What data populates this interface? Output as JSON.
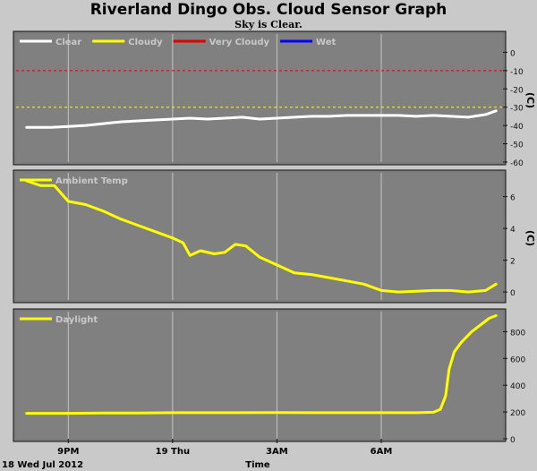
{
  "title": "Riverland Dingo Obs. Cloud Sensor Graph",
  "subtitle": "Sky is Clear.",
  "footer": {
    "date": "18 Wed Jul 2012",
    "xlabel": "Time"
  },
  "x_ticks": [
    "9PM",
    "19 Thu",
    "3AM",
    "6AM"
  ],
  "colors": {
    "background": "#c9c9c9",
    "plot_bg": "#808080",
    "grid": "#c4c4c4",
    "clear": "#ffffff",
    "cloudy": "#ffff00",
    "very_cloudy": "#e00000",
    "wet": "#0000ff"
  },
  "chart_data": [
    {
      "type": "line",
      "ylabel": "(C)",
      "ylim": [
        -60,
        10
      ],
      "yticks": [
        0,
        -10,
        -20,
        -30,
        -40,
        -50,
        -60
      ],
      "legend": [
        {
          "label": "Clear",
          "color": "#ffffff"
        },
        {
          "label": "Cloudy",
          "color": "#ffff00"
        },
        {
          "label": "Very Cloudy",
          "color": "#e00000"
        },
        {
          "label": "Wet",
          "color": "#0000ff"
        }
      ],
      "thresholds": [
        {
          "y": -10,
          "color": "#e00000",
          "style": "dashed"
        },
        {
          "y": -30,
          "color": "#ffff00",
          "style": "dashed"
        }
      ],
      "series": [
        {
          "name": "Clear",
          "color": "#ffffff",
          "x": [
            19.8,
            20.5,
            21.0,
            21.5,
            22.0,
            22.5,
            23.0,
            23.5,
            24.0,
            24.5,
            25.0,
            25.5,
            26.0,
            26.5,
            27.0,
            27.5,
            28.0,
            28.5,
            29.0,
            29.5,
            30.0,
            30.5,
            31.0,
            31.5,
            32.0,
            32.5,
            33.0,
            33.3
          ],
          "y": [
            -41,
            -41,
            -40.5,
            -40,
            -39,
            -38,
            -37.5,
            -37,
            -36.5,
            -36,
            -36.5,
            -36,
            -35.5,
            -36.5,
            -36,
            -35.5,
            -35,
            -35,
            -34.5,
            -34.5,
            -34.5,
            -34.5,
            -35,
            -34.5,
            -35,
            -35.5,
            -34,
            -32
          ]
        }
      ]
    },
    {
      "type": "line",
      "ylabel": "(C)",
      "ylim": [
        -0.5,
        7.5
      ],
      "yticks": [
        0,
        2,
        4,
        6
      ],
      "legend": [
        {
          "label": "Ambient Temp",
          "color": "#ffff00"
        }
      ],
      "series": [
        {
          "name": "Ambient Temp",
          "color": "#ffff00",
          "x": [
            19.8,
            20.2,
            20.6,
            21.0,
            21.5,
            22.0,
            22.5,
            23.0,
            23.5,
            24.0,
            24.3,
            24.5,
            24.8,
            25.2,
            25.5,
            25.8,
            26.1,
            26.5,
            27.0,
            27.5,
            28.0,
            28.5,
            29.0,
            29.5,
            30.0,
            30.5,
            31.0,
            31.5,
            32.0,
            32.5,
            33.0,
            33.3
          ],
          "y": [
            7.0,
            6.7,
            6.7,
            5.7,
            5.5,
            5.1,
            4.6,
            4.2,
            3.8,
            3.4,
            3.1,
            2.3,
            2.6,
            2.4,
            2.5,
            3.0,
            2.9,
            2.2,
            1.7,
            1.2,
            1.1,
            0.9,
            0.7,
            0.5,
            0.1,
            0.0,
            0.05,
            0.1,
            0.1,
            0.0,
            0.1,
            0.5
          ]
        }
      ]
    },
    {
      "type": "line",
      "ylim": [
        0,
        950
      ],
      "yticks": [
        0,
        200,
        400,
        600,
        800
      ],
      "legend": [
        {
          "label": "Daylight",
          "color": "#ffff00"
        }
      ],
      "series": [
        {
          "name": "Daylight",
          "color": "#ffff00",
          "x": [
            19.8,
            21.0,
            22.0,
            23.0,
            24.0,
            25.0,
            26.0,
            27.0,
            28.0,
            29.0,
            30.0,
            30.5,
            31.0,
            31.5,
            31.7,
            31.85,
            31.95,
            32.1,
            32.3,
            32.6,
            32.9,
            33.1,
            33.3
          ],
          "y": [
            190,
            190,
            193,
            193,
            195,
            195,
            195,
            196,
            195,
            195,
            195,
            195,
            195,
            198,
            220,
            320,
            520,
            650,
            720,
            800,
            860,
            900,
            920
          ]
        }
      ]
    }
  ]
}
